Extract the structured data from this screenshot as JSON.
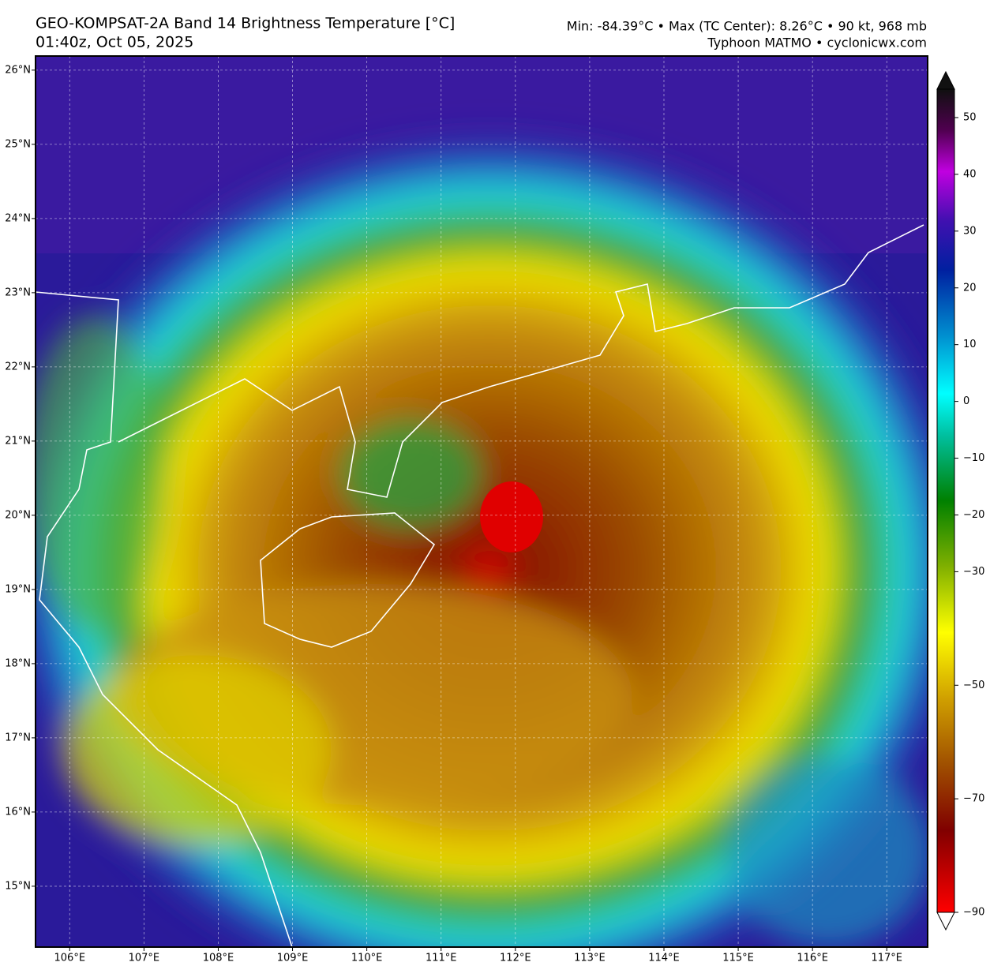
{
  "header": {
    "title": "GEO-KOMPSAT-2A Band 14 Brightness Temperature [°C]",
    "time": "01:40z, Oct 05, 2025",
    "stats": "Min: -84.39°C • Max (TC Center): 8.26°C • 90 kt, 968 mb",
    "source": "Typhoon MATMO • cyclonicwx.com"
  },
  "map": {
    "xlim": [
      105.54,
      117.55
    ],
    "ylim": [
      14.18,
      26.19
    ],
    "xticks": [
      {
        "value": 106,
        "label": "106°E"
      },
      {
        "value": 107,
        "label": "107°E"
      },
      {
        "value": 108,
        "label": "108°E"
      },
      {
        "value": 109,
        "label": "109°E"
      },
      {
        "value": 110,
        "label": "110°E"
      },
      {
        "value": 111,
        "label": "111°E"
      },
      {
        "value": 112,
        "label": "112°E"
      },
      {
        "value": 113,
        "label": "113°E"
      },
      {
        "value": 114,
        "label": "114°E"
      },
      {
        "value": 115,
        "label": "115°E"
      },
      {
        "value": 116,
        "label": "116°E"
      },
      {
        "value": 117,
        "label": "117°E"
      }
    ],
    "yticks": [
      {
        "value": 15,
        "label": "15°N"
      },
      {
        "value": 16,
        "label": "16°N"
      },
      {
        "value": 17,
        "label": "17°N"
      },
      {
        "value": 18,
        "label": "18°N"
      },
      {
        "value": 19,
        "label": "19°N"
      },
      {
        "value": 20,
        "label": "20°N"
      },
      {
        "value": 21,
        "label": "21°N"
      },
      {
        "value": 22,
        "label": "22°N"
      },
      {
        "value": 23,
        "label": "23°N"
      },
      {
        "value": 24,
        "label": "24°N"
      },
      {
        "value": 25,
        "label": "25°N"
      },
      {
        "value": 26,
        "label": "26°N"
      }
    ],
    "grid": true
  },
  "colorbar": {
    "lim": [
      -90,
      55
    ],
    "ticks": [
      50,
      40,
      30,
      20,
      10,
      0,
      {
        "value": -10,
        "label": "−10"
      },
      {
        "value": -20,
        "label": "−20"
      },
      {
        "value": -30,
        "label": "−30"
      },
      {
        "value": -50,
        "label": "−50"
      },
      {
        "value": -70,
        "label": "−70"
      },
      {
        "value": -90,
        "label": "−90"
      }
    ]
  }
}
